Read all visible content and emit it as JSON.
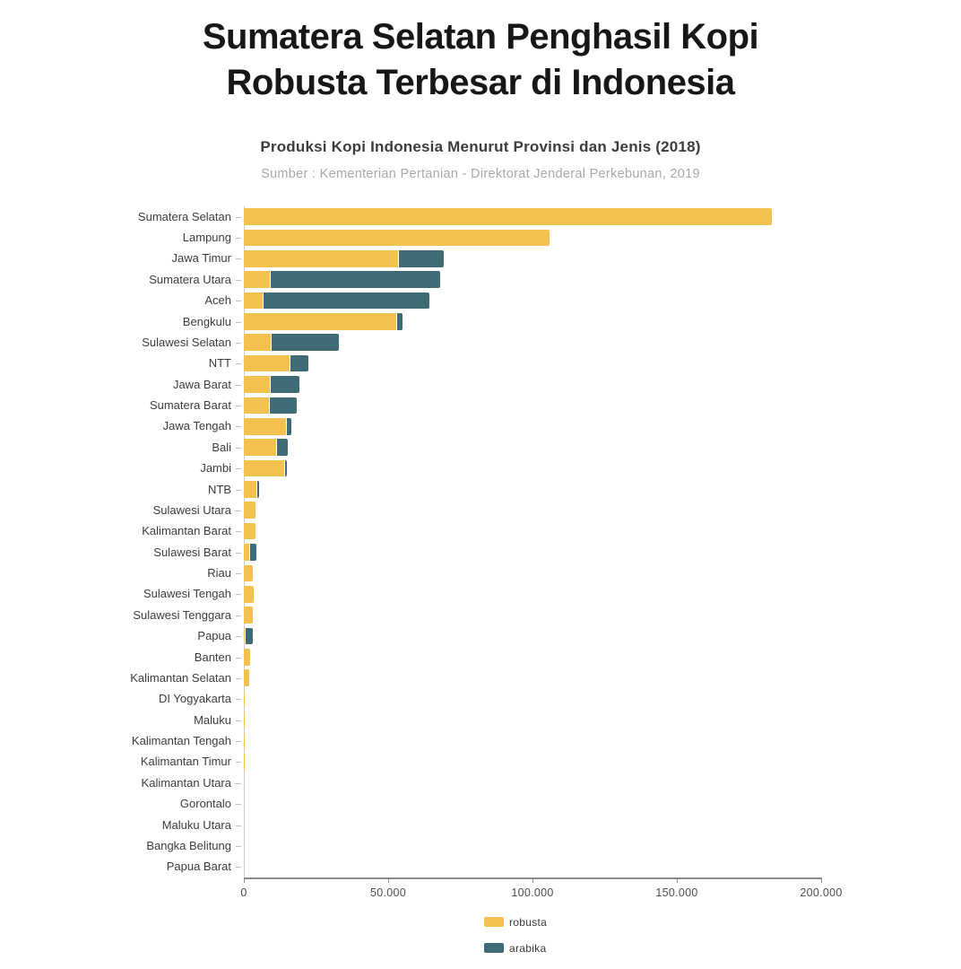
{
  "header": {
    "title_line1": "Sumatera Selatan Penghasil Kopi",
    "title_line2": "Robusta Terbesar di Indonesia",
    "subtitle": "Produksi Kopi Indonesia Menurut Provinsi dan Jenis (2018)",
    "source": "Sumber : Kementerian Pertanian - Direktorat Jenderal Perkebunan, 2019"
  },
  "colors": {
    "robusta": "#F2C14E",
    "arabika": "#3E6B76",
    "background": "#FFFFFF",
    "title_text": "#171717",
    "source_text": "#A8A8A8",
    "axis": "#8A8A8A"
  },
  "chart_data": {
    "type": "bar",
    "orientation": "horizontal",
    "stacked": true,
    "title": "Produksi Kopi Indonesia Menurut Provinsi dan Jenis (2018)",
    "xlabel": "",
    "ylabel": "",
    "xlim": [
      0,
      200000
    ],
    "grid": false,
    "legend_position": "bottom",
    "categories": [
      "Sumatera Selatan",
      "Lampung",
      "Jawa Timur",
      "Sumatera Utara",
      "Aceh",
      "Bengkulu",
      "Sulawesi Selatan",
      "NTT",
      "Jawa Barat",
      "Sumatera Barat",
      "Jawa Tengah",
      "Bali",
      "Jambi",
      "NTB",
      "Sulawesi Utara",
      "Kalimantan Barat",
      "Sulawesi Barat",
      "Riau",
      "Sulawesi Tengah",
      "Sulawesi Tenggara",
      "Papua",
      "Banten",
      "Kalimantan Selatan",
      "DI Yogyakarta",
      "Maluku",
      "Kalimantan Tengah",
      "Kalimantan Timur",
      "Kalimantan Utara",
      "Gorontalo",
      "Maluku Utara",
      "Bangka Belitung",
      "Papua Barat"
    ],
    "series": [
      {
        "name": "robusta",
        "color": "#F2C14E",
        "values": [
          183000,
          106000,
          53500,
          9000,
          6500,
          52700,
          9200,
          15700,
          9100,
          8800,
          14500,
          11200,
          14000,
          4200,
          3900,
          3900,
          1800,
          3100,
          3300,
          3000,
          200,
          2300,
          1900,
          400,
          300,
          300,
          250,
          150,
          150,
          100,
          60,
          50
        ]
      },
      {
        "name": "arabika",
        "color": "#3E6B76",
        "values": [
          0,
          0,
          15500,
          58700,
          57600,
          2100,
          23500,
          6500,
          10000,
          9300,
          1500,
          3800,
          700,
          700,
          0,
          0,
          2100,
          0,
          0,
          0,
          2700,
          0,
          0,
          0,
          0,
          0,
          0,
          0,
          0,
          0,
          0,
          0
        ]
      }
    ],
    "x_ticks": [
      {
        "value": 0,
        "label": "0"
      },
      {
        "value": 50000,
        "label": "50.000"
      },
      {
        "value": 100000,
        "label": "100.000"
      },
      {
        "value": 150000,
        "label": "150.000"
      },
      {
        "value": 200000,
        "label": "200.000"
      }
    ]
  }
}
